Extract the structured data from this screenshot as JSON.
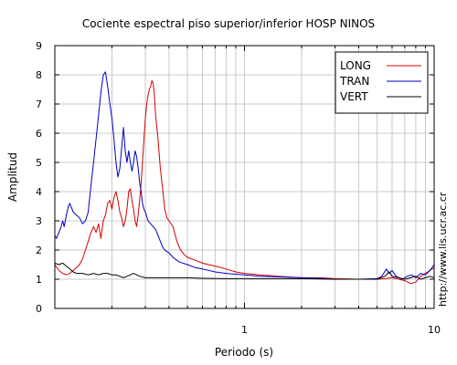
{
  "chart_data": {
    "type": "line",
    "title": "Cociente espectral piso superior/inferior  HOSP NINOS",
    "xlabel": "Periodo (s)",
    "ylabel": "Amplitud",
    "x_scale": "log",
    "xlim": [
      0.1,
      10
    ],
    "ylim": [
      0,
      9
    ],
    "x_ticks": [
      1,
      10
    ],
    "x_tick_labels": [
      "1",
      "10"
    ],
    "y_ticks": [
      0,
      1,
      2,
      3,
      4,
      5,
      6,
      7,
      8,
      9
    ],
    "y_tick_labels": [
      "0",
      "1",
      "2",
      "3",
      "4",
      "5",
      "6",
      "7",
      "8",
      "9"
    ],
    "grid": true,
    "legend_position": "top-right",
    "side_text": "http://www.lis.ucr.ac.cr",
    "series": [
      {
        "name": "LONG",
        "color": "#d40000",
        "points": [
          [
            0.1,
            1.5
          ],
          [
            0.105,
            1.3
          ],
          [
            0.11,
            1.2
          ],
          [
            0.115,
            1.15
          ],
          [
            0.12,
            1.2
          ],
          [
            0.125,
            1.3
          ],
          [
            0.13,
            1.4
          ],
          [
            0.135,
            1.5
          ],
          [
            0.14,
            1.7
          ],
          [
            0.145,
            2.0
          ],
          [
            0.15,
            2.3
          ],
          [
            0.155,
            2.6
          ],
          [
            0.16,
            2.8
          ],
          [
            0.165,
            2.6
          ],
          [
            0.17,
            2.9
          ],
          [
            0.175,
            2.4
          ],
          [
            0.18,
            3.0
          ],
          [
            0.185,
            3.2
          ],
          [
            0.19,
            3.6
          ],
          [
            0.195,
            3.7
          ],
          [
            0.2,
            3.4
          ],
          [
            0.205,
            3.8
          ],
          [
            0.21,
            4.0
          ],
          [
            0.215,
            3.7
          ],
          [
            0.22,
            3.3
          ],
          [
            0.225,
            3.1
          ],
          [
            0.23,
            2.8
          ],
          [
            0.235,
            3.0
          ],
          [
            0.24,
            3.4
          ],
          [
            0.245,
            4.0
          ],
          [
            0.25,
            4.1
          ],
          [
            0.255,
            3.7
          ],
          [
            0.26,
            3.4
          ],
          [
            0.265,
            3.0
          ],
          [
            0.27,
            2.8
          ],
          [
            0.275,
            3.2
          ],
          [
            0.28,
            3.7
          ],
          [
            0.285,
            4.3
          ],
          [
            0.29,
            5.0
          ],
          [
            0.295,
            5.8
          ],
          [
            0.3,
            6.5
          ],
          [
            0.305,
            7.0
          ],
          [
            0.31,
            7.3
          ],
          [
            0.315,
            7.5
          ],
          [
            0.32,
            7.6
          ],
          [
            0.325,
            7.8
          ],
          [
            0.33,
            7.7
          ],
          [
            0.335,
            7.3
          ],
          [
            0.34,
            6.6
          ],
          [
            0.35,
            5.8
          ],
          [
            0.36,
            4.8
          ],
          [
            0.37,
            4.1
          ],
          [
            0.38,
            3.4
          ],
          [
            0.39,
            3.1
          ],
          [
            0.4,
            3.0
          ],
          [
            0.42,
            2.8
          ],
          [
            0.44,
            2.3
          ],
          [
            0.46,
            2.0
          ],
          [
            0.48,
            1.85
          ],
          [
            0.5,
            1.75
          ],
          [
            0.55,
            1.65
          ],
          [
            0.6,
            1.55
          ],
          [
            0.7,
            1.45
          ],
          [
            0.8,
            1.35
          ],
          [
            0.9,
            1.25
          ],
          [
            1.0,
            1.2
          ],
          [
            1.2,
            1.15
          ],
          [
            1.5,
            1.1
          ],
          [
            2.0,
            1.05
          ],
          [
            2.5,
            1.05
          ],
          [
            3.0,
            1.02
          ],
          [
            4.0,
            1.0
          ],
          [
            5.0,
            1.0
          ],
          [
            5.5,
            1.02
          ],
          [
            6.0,
            1.05
          ],
          [
            6.5,
            1.0
          ],
          [
            7.0,
            0.95
          ],
          [
            7.5,
            0.85
          ],
          [
            8.0,
            0.9
          ],
          [
            8.5,
            1.1
          ],
          [
            9.0,
            1.2
          ],
          [
            9.5,
            1.3
          ],
          [
            10.0,
            1.4
          ]
        ]
      },
      {
        "name": "TRAN",
        "color": "#0000c8",
        "points": [
          [
            0.1,
            2.5
          ],
          [
            0.102,
            2.4
          ],
          [
            0.105,
            2.6
          ],
          [
            0.108,
            2.8
          ],
          [
            0.11,
            3.0
          ],
          [
            0.112,
            2.8
          ],
          [
            0.115,
            3.2
          ],
          [
            0.118,
            3.5
          ],
          [
            0.12,
            3.6
          ],
          [
            0.125,
            3.3
          ],
          [
            0.13,
            3.2
          ],
          [
            0.135,
            3.1
          ],
          [
            0.14,
            2.9
          ],
          [
            0.145,
            3.0
          ],
          [
            0.15,
            3.3
          ],
          [
            0.155,
            4.2
          ],
          [
            0.16,
            5.0
          ],
          [
            0.165,
            5.8
          ],
          [
            0.17,
            6.6
          ],
          [
            0.175,
            7.4
          ],
          [
            0.18,
            8.0
          ],
          [
            0.185,
            8.1
          ],
          [
            0.19,
            7.6
          ],
          [
            0.195,
            7.0
          ],
          [
            0.2,
            6.5
          ],
          [
            0.205,
            5.8
          ],
          [
            0.21,
            5.0
          ],
          [
            0.215,
            4.5
          ],
          [
            0.22,
            4.8
          ],
          [
            0.225,
            5.5
          ],
          [
            0.23,
            6.2
          ],
          [
            0.235,
            5.4
          ],
          [
            0.24,
            5.0
          ],
          [
            0.245,
            5.4
          ],
          [
            0.25,
            5.0
          ],
          [
            0.255,
            4.7
          ],
          [
            0.26,
            5.0
          ],
          [
            0.265,
            5.4
          ],
          [
            0.27,
            5.2
          ],
          [
            0.275,
            4.8
          ],
          [
            0.28,
            4.3
          ],
          [
            0.285,
            4.0
          ],
          [
            0.29,
            3.6
          ],
          [
            0.295,
            3.4
          ],
          [
            0.3,
            3.3
          ],
          [
            0.31,
            3.0
          ],
          [
            0.32,
            2.9
          ],
          [
            0.33,
            2.8
          ],
          [
            0.34,
            2.7
          ],
          [
            0.35,
            2.5
          ],
          [
            0.36,
            2.3
          ],
          [
            0.37,
            2.1
          ],
          [
            0.38,
            2.0
          ],
          [
            0.4,
            1.9
          ],
          [
            0.42,
            1.75
          ],
          [
            0.45,
            1.6
          ],
          [
            0.5,
            1.5
          ],
          [
            0.55,
            1.4
          ],
          [
            0.6,
            1.35
          ],
          [
            0.7,
            1.25
          ],
          [
            0.8,
            1.2
          ],
          [
            1.0,
            1.15
          ],
          [
            1.2,
            1.1
          ],
          [
            1.5,
            1.08
          ],
          [
            2.0,
            1.05
          ],
          [
            2.5,
            1.03
          ],
          [
            3.0,
            1.0
          ],
          [
            4.0,
            1.0
          ],
          [
            5.0,
            1.02
          ],
          [
            5.3,
            1.1
          ],
          [
            5.6,
            1.35
          ],
          [
            5.8,
            1.2
          ],
          [
            6.0,
            1.3
          ],
          [
            6.3,
            1.1
          ],
          [
            6.8,
            1.0
          ],
          [
            7.2,
            1.1
          ],
          [
            7.6,
            1.15
          ],
          [
            8.0,
            1.05
          ],
          [
            8.5,
            1.2
          ],
          [
            9.0,
            1.15
          ],
          [
            9.5,
            1.3
          ],
          [
            10.0,
            1.5
          ]
        ]
      },
      {
        "name": "VERT",
        "color": "#000000",
        "points": [
          [
            0.1,
            1.55
          ],
          [
            0.105,
            1.5
          ],
          [
            0.11,
            1.55
          ],
          [
            0.115,
            1.45
          ],
          [
            0.12,
            1.35
          ],
          [
            0.125,
            1.25
          ],
          [
            0.13,
            1.2
          ],
          [
            0.14,
            1.2
          ],
          [
            0.15,
            1.15
          ],
          [
            0.16,
            1.2
          ],
          [
            0.17,
            1.15
          ],
          [
            0.18,
            1.2
          ],
          [
            0.19,
            1.2
          ],
          [
            0.2,
            1.15
          ],
          [
            0.21,
            1.15
          ],
          [
            0.22,
            1.1
          ],
          [
            0.23,
            1.05
          ],
          [
            0.24,
            1.1
          ],
          [
            0.25,
            1.15
          ],
          [
            0.26,
            1.2
          ],
          [
            0.27,
            1.15
          ],
          [
            0.28,
            1.1
          ],
          [
            0.3,
            1.05
          ],
          [
            0.32,
            1.05
          ],
          [
            0.35,
            1.05
          ],
          [
            0.4,
            1.05
          ],
          [
            0.5,
            1.05
          ],
          [
            0.6,
            1.03
          ],
          [
            0.8,
            1.02
          ],
          [
            1.0,
            1.02
          ],
          [
            1.5,
            1.02
          ],
          [
            2.0,
            1.02
          ],
          [
            3.0,
            1.0
          ],
          [
            4.0,
            1.0
          ],
          [
            5.0,
            1.0
          ],
          [
            5.5,
            1.1
          ],
          [
            5.8,
            1.25
          ],
          [
            6.0,
            1.1
          ],
          [
            6.5,
            1.05
          ],
          [
            7.0,
            1.0
          ],
          [
            7.5,
            1.05
          ],
          [
            8.0,
            1.1
          ],
          [
            8.5,
            1.0
          ],
          [
            9.0,
            1.05
          ],
          [
            9.5,
            1.1
          ],
          [
            10.0,
            1.05
          ]
        ]
      }
    ]
  }
}
